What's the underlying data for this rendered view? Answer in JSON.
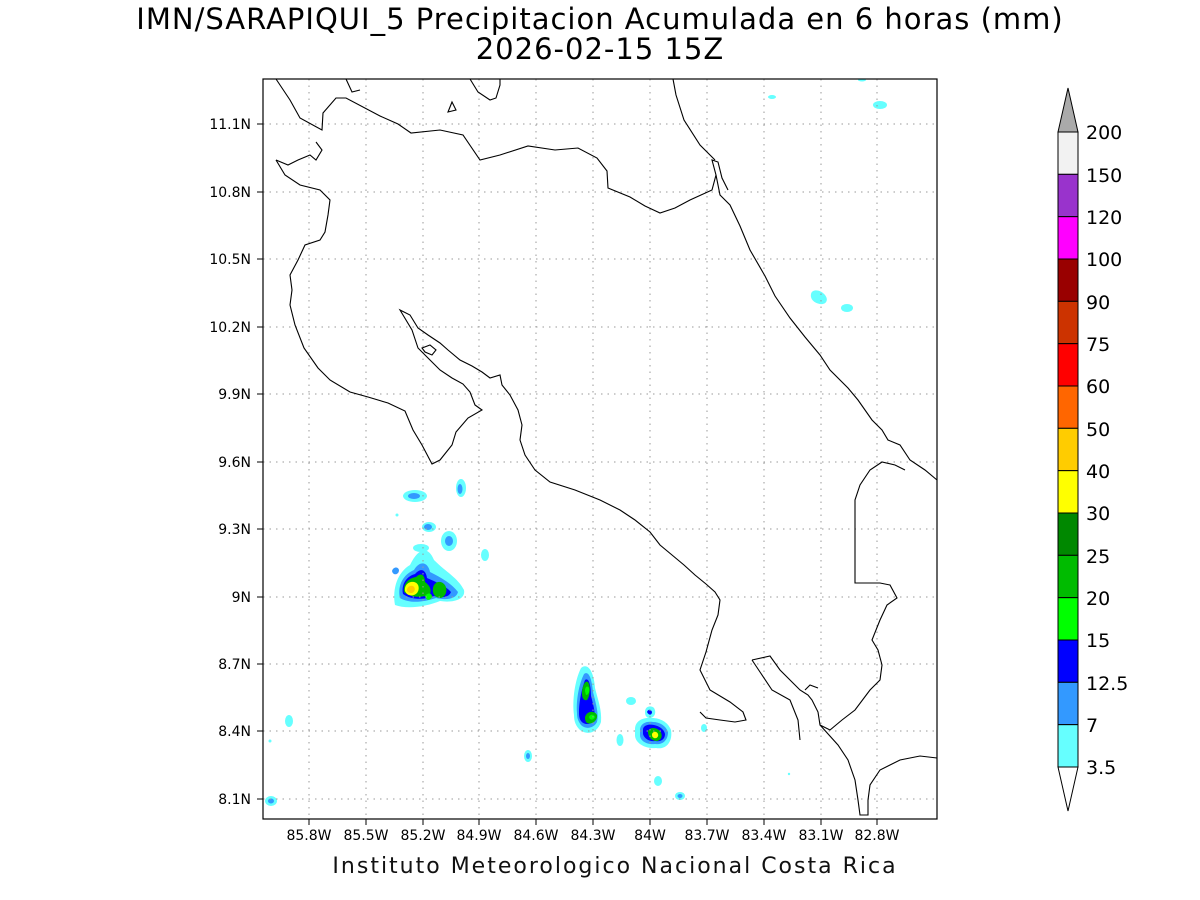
{
  "title": {
    "line1": "IMN/SARAPIQUI_5 Precipitacion Acumulada en 6 horas (mm)",
    "line2": "2026-02-15 15Z"
  },
  "footer": "Instituto Meteorologico Nacional Costa Rica",
  "map": {
    "lon_ticks": [
      "85.8W",
      "85.5W",
      "85.2W",
      "84.9W",
      "84.6W",
      "84.3W",
      "84W",
      "83.7W",
      "83.4W",
      "83.1W",
      "82.8W"
    ],
    "lat_ticks": [
      "11.1N",
      "10.8N",
      "10.5N",
      "10.2N",
      "9.9N",
      "9.6N",
      "9.3N",
      "9N",
      "8.7N",
      "8.4N",
      "8.1N"
    ],
    "grid": true
  },
  "colorbar": {
    "labels": [
      "200",
      "150",
      "120",
      "100",
      "90",
      "75",
      "60",
      "50",
      "40",
      "30",
      "25",
      "20",
      "15",
      "12.5",
      "7",
      "3.5"
    ],
    "colors": [
      "#f2f2f2",
      "#9933cc",
      "#ff00ff",
      "#990000",
      "#cc3300",
      "#ff0000",
      "#ff6600",
      "#ffcc00",
      "#ffff00",
      "#008800",
      "#00bb00",
      "#00ff00",
      "#0000ff",
      "#3399ff",
      "#66ffff"
    ],
    "over_color": "#aaaaaa",
    "under_color": "#ffffff"
  }
}
